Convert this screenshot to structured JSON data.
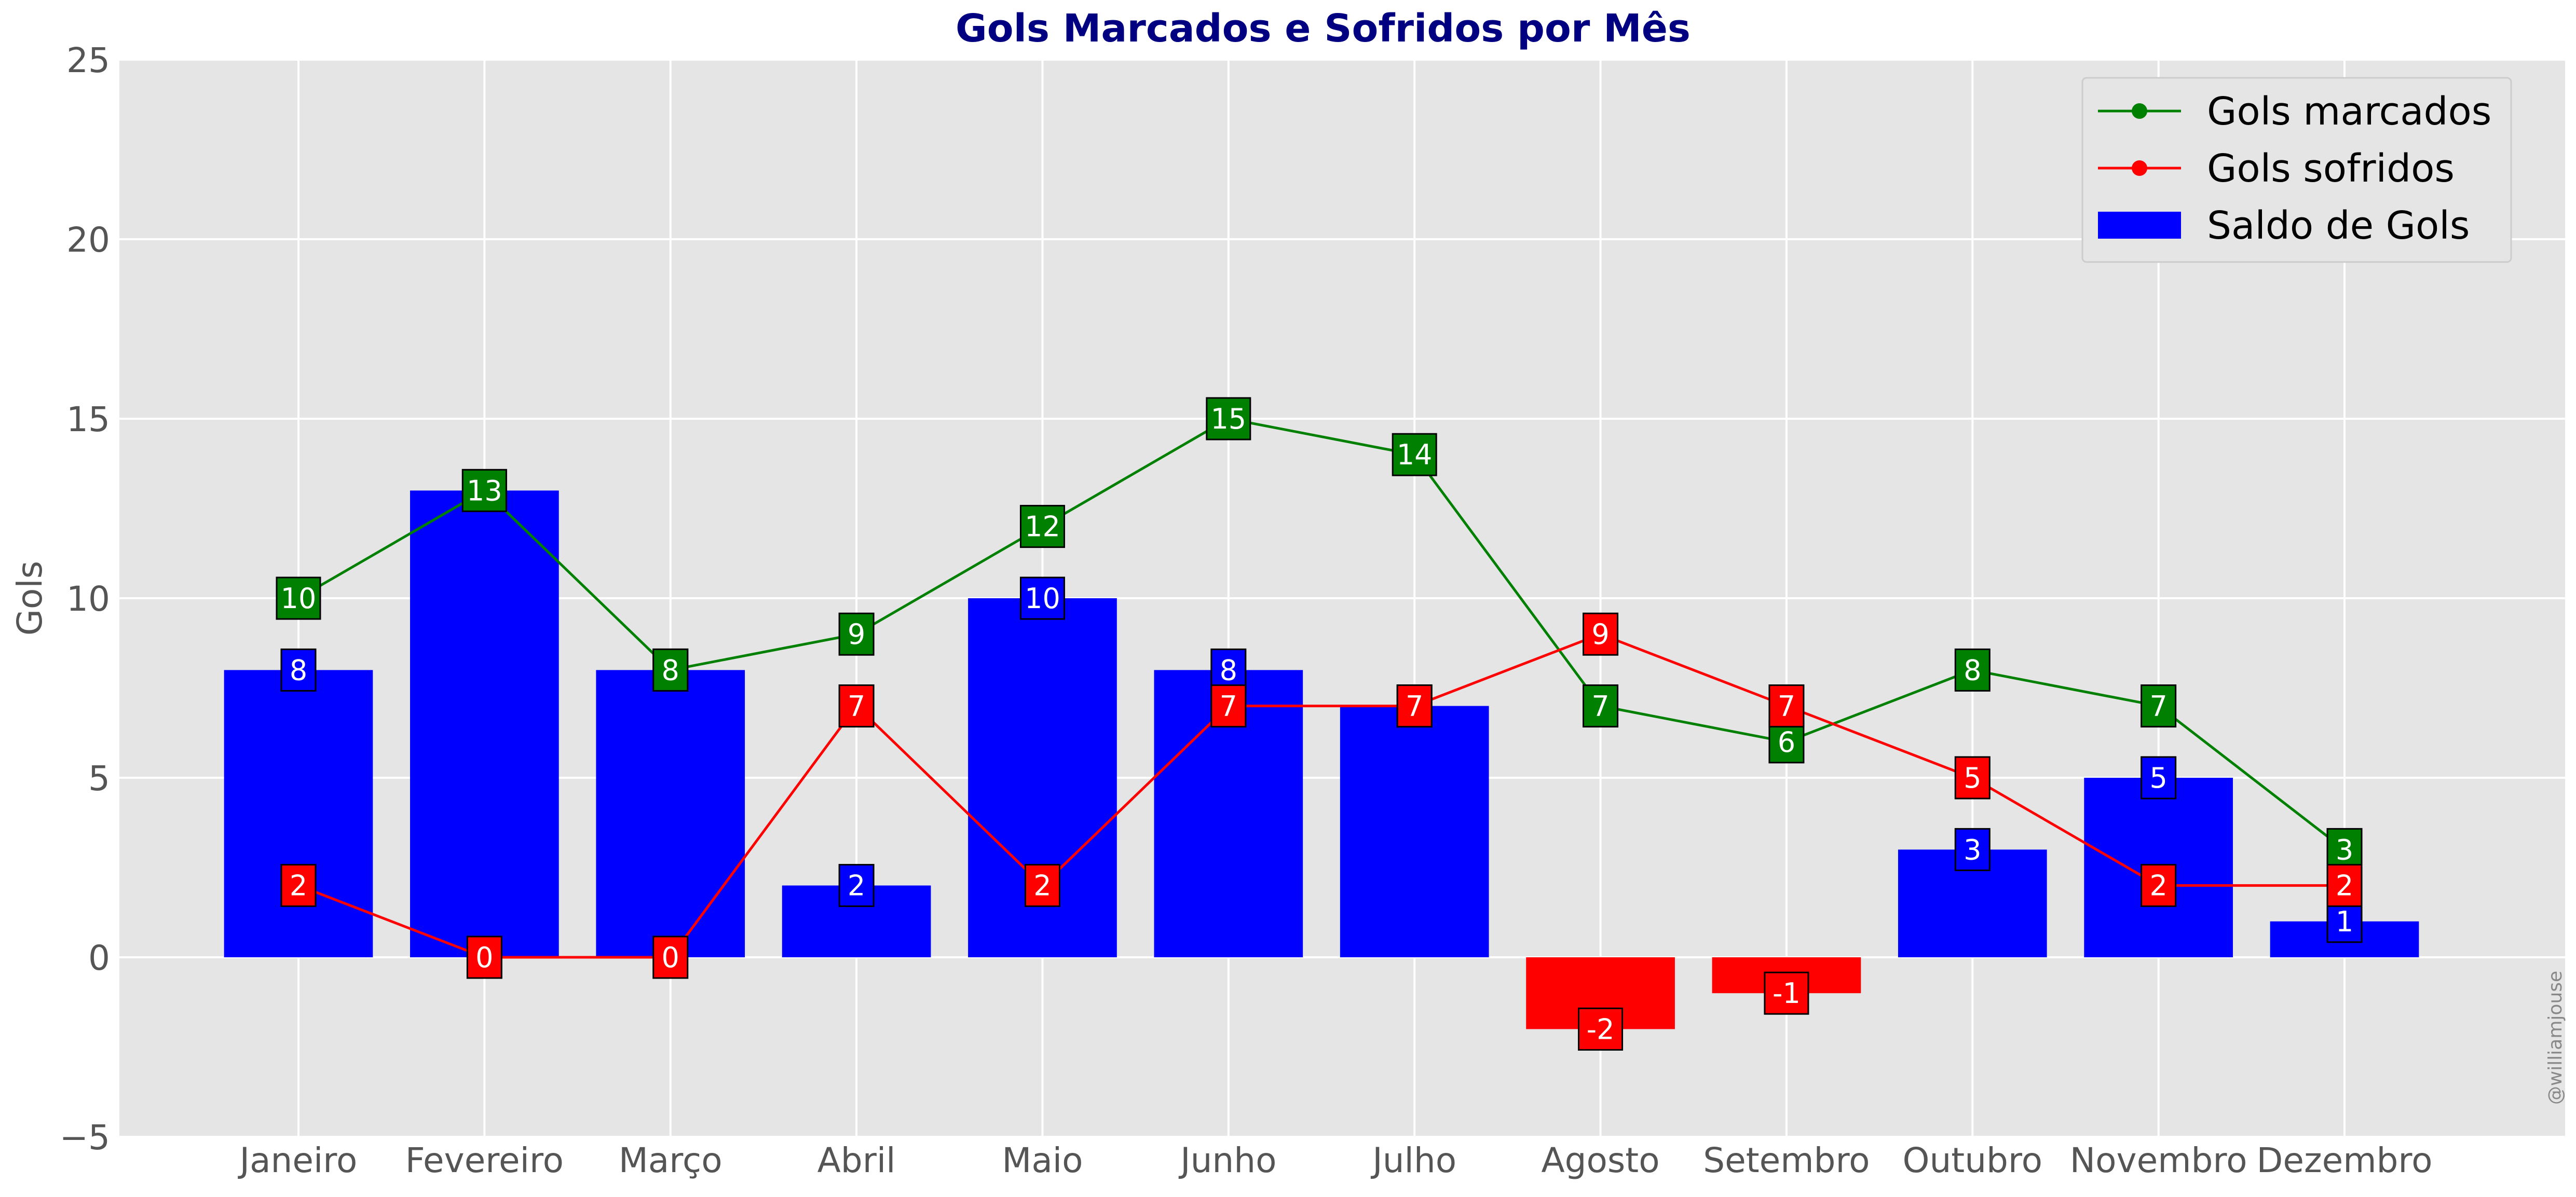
{
  "chart_data": {
    "type": "bar",
    "title": "Gols Marcados e Sofridos por Mês",
    "xlabel": "",
    "ylabel": "Gols",
    "ylim": [
      -5,
      25
    ],
    "yticks": [
      -5,
      0,
      5,
      10,
      15,
      20,
      25
    ],
    "grid": true,
    "legend_position": "top-right",
    "categories": [
      "Janeiro",
      "Fevereiro",
      "Março",
      "Abril",
      "Maio",
      "Junho",
      "Julho",
      "Agosto",
      "Setembro",
      "Outubro",
      "Novembro",
      "Dezembro"
    ],
    "series": [
      {
        "name": "Gols marcados",
        "type": "line",
        "color": "#008000",
        "values": [
          10,
          13,
          8,
          9,
          12,
          15,
          14,
          7,
          6,
          8,
          7,
          3
        ]
      },
      {
        "name": "Gols sofridos",
        "type": "line",
        "color": "#ff0000",
        "values": [
          2,
          0,
          0,
          7,
          2,
          7,
          7,
          9,
          7,
          5,
          2,
          2
        ]
      },
      {
        "name": "Saldo de Gols",
        "type": "bar",
        "color": "#0000ff",
        "negative_color": "#ff0000",
        "values": [
          8,
          13,
          8,
          2,
          10,
          8,
          7,
          -2,
          -1,
          3,
          5,
          1
        ]
      }
    ],
    "watermark": "@williamjouse"
  }
}
